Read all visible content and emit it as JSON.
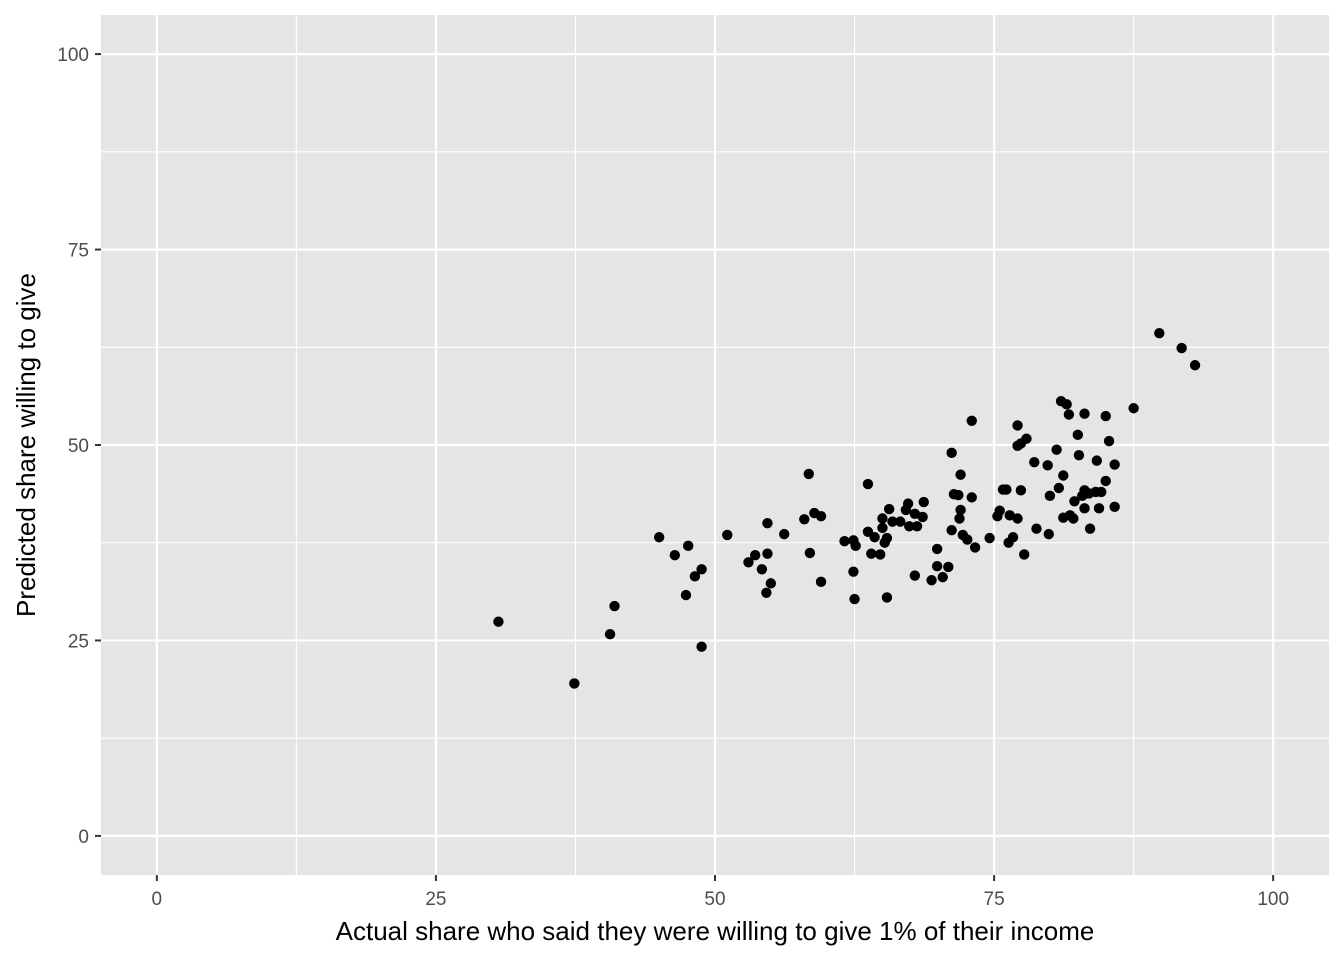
{
  "chart_data": {
    "type": "scatter",
    "title": "",
    "xlabel": "Actual share who said they were willing to give 1% of their income",
    "ylabel": "Predicted share willing to give",
    "xlim": [
      -5,
      105
    ],
    "ylim": [
      -5,
      105
    ],
    "x_ticks": [
      0,
      25,
      50,
      75,
      100
    ],
    "y_ticks": [
      0,
      25,
      50,
      75,
      100
    ],
    "grid": true,
    "colors": {
      "panel": "#e5e5e5",
      "grid": "#ffffff",
      "point": "#000000",
      "tick_text": "#4d4d4d"
    },
    "points": [
      [
        30.6,
        27.4
      ],
      [
        37.4,
        19.5
      ],
      [
        40.6,
        25.8
      ],
      [
        41.0,
        29.4
      ],
      [
        45.0,
        38.2
      ],
      [
        46.4,
        35.9
      ],
      [
        47.4,
        30.8
      ],
      [
        47.6,
        37.1
      ],
      [
        48.2,
        33.2
      ],
      [
        48.8,
        34.1
      ],
      [
        48.8,
        24.2
      ],
      [
        51.1,
        38.5
      ],
      [
        53.0,
        35.0
      ],
      [
        53.6,
        35.9
      ],
      [
        54.2,
        34.1
      ],
      [
        54.6,
        31.1
      ],
      [
        54.7,
        36.1
      ],
      [
        54.7,
        40.0
      ],
      [
        55.0,
        32.3
      ],
      [
        56.2,
        38.6
      ],
      [
        58.0,
        40.5
      ],
      [
        58.4,
        46.3
      ],
      [
        58.5,
        36.2
      ],
      [
        58.9,
        41.3
      ],
      [
        59.5,
        40.9
      ],
      [
        59.5,
        32.5
      ],
      [
        61.6,
        37.7
      ],
      [
        62.4,
        37.8
      ],
      [
        62.4,
        33.8
      ],
      [
        62.5,
        30.3
      ],
      [
        62.6,
        37.1
      ],
      [
        63.7,
        38.9
      ],
      [
        63.7,
        45.0
      ],
      [
        64.0,
        36.1
      ],
      [
        64.3,
        38.2
      ],
      [
        64.8,
        36.0
      ],
      [
        65.0,
        40.6
      ],
      [
        65.0,
        39.4
      ],
      [
        65.2,
        37.5
      ],
      [
        65.4,
        38.1
      ],
      [
        65.4,
        30.5
      ],
      [
        65.6,
        41.8
      ],
      [
        65.9,
        40.2
      ],
      [
        66.6,
        40.2
      ],
      [
        67.1,
        41.7
      ],
      [
        67.3,
        42.5
      ],
      [
        67.4,
        39.6
      ],
      [
        67.9,
        41.2
      ],
      [
        67.9,
        33.3
      ],
      [
        68.1,
        39.6
      ],
      [
        68.6,
        40.8
      ],
      [
        68.7,
        42.7
      ],
      [
        69.4,
        32.7
      ],
      [
        69.9,
        34.5
      ],
      [
        69.9,
        36.7
      ],
      [
        70.4,
        33.1
      ],
      [
        70.9,
        34.4
      ],
      [
        71.2,
        49.0
      ],
      [
        71.2,
        39.1
      ],
      [
        71.4,
        43.7
      ],
      [
        71.8,
        43.6
      ],
      [
        71.9,
        40.6
      ],
      [
        72.0,
        46.2
      ],
      [
        72.0,
        41.7
      ],
      [
        72.2,
        38.5
      ],
      [
        72.6,
        37.9
      ],
      [
        73.0,
        53.1
      ],
      [
        73.0,
        43.3
      ],
      [
        73.3,
        36.9
      ],
      [
        74.6,
        38.1
      ],
      [
        75.3,
        40.9
      ],
      [
        75.5,
        41.6
      ],
      [
        75.8,
        44.3
      ],
      [
        76.1,
        44.3
      ],
      [
        76.3,
        37.5
      ],
      [
        76.4,
        41.0
      ],
      [
        76.7,
        38.2
      ],
      [
        77.1,
        52.5
      ],
      [
        77.1,
        49.9
      ],
      [
        77.1,
        40.6
      ],
      [
        77.4,
        50.2
      ],
      [
        77.4,
        44.2
      ],
      [
        77.7,
        36.0
      ],
      [
        77.9,
        50.8
      ],
      [
        78.6,
        47.8
      ],
      [
        78.8,
        39.3
      ],
      [
        79.8,
        47.4
      ],
      [
        79.9,
        38.6
      ],
      [
        80.0,
        43.5
      ],
      [
        80.6,
        49.4
      ],
      [
        80.8,
        44.5
      ],
      [
        81.0,
        55.6
      ],
      [
        81.2,
        40.7
      ],
      [
        81.2,
        46.1
      ],
      [
        81.5,
        55.2
      ],
      [
        81.7,
        53.9
      ],
      [
        81.8,
        41.0
      ],
      [
        82.1,
        40.6
      ],
      [
        82.2,
        42.8
      ],
      [
        82.5,
        51.3
      ],
      [
        82.6,
        48.7
      ],
      [
        82.9,
        43.5
      ],
      [
        83.1,
        44.2
      ],
      [
        83.1,
        41.9
      ],
      [
        83.1,
        54.0
      ],
      [
        83.5,
        43.8
      ],
      [
        83.6,
        39.3
      ],
      [
        84.1,
        44.0
      ],
      [
        84.2,
        48.0
      ],
      [
        84.4,
        41.9
      ],
      [
        84.6,
        44.0
      ],
      [
        85.0,
        45.4
      ],
      [
        85.0,
        53.7
      ],
      [
        85.3,
        50.5
      ],
      [
        85.8,
        47.5
      ],
      [
        85.8,
        42.1
      ],
      [
        87.5,
        54.7
      ],
      [
        89.8,
        64.3
      ],
      [
        91.8,
        62.4
      ],
      [
        93.0,
        60.2
      ]
    ]
  }
}
